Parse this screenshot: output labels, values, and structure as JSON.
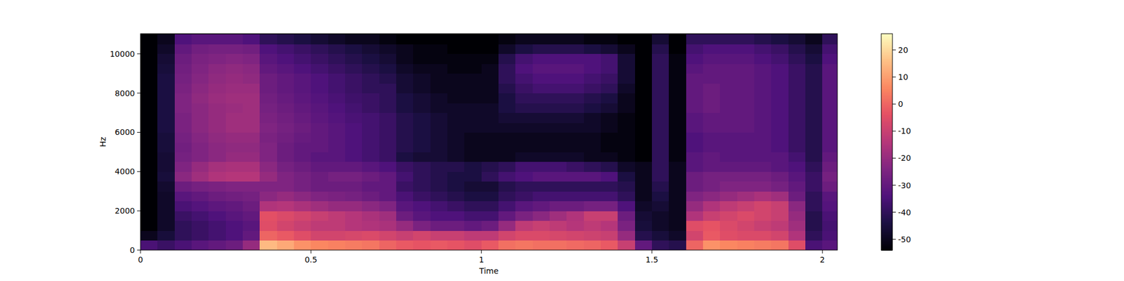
{
  "chart_data": {
    "type": "heatmap",
    "x_label": "Time",
    "y_label": "Hz",
    "xlim": [
      0,
      2.044
    ],
    "ylim": [
      0,
      11025
    ],
    "xticks": [
      0,
      0.5,
      1,
      1.5,
      2
    ],
    "yticks": [
      0,
      2000,
      4000,
      6000,
      8000,
      10000
    ],
    "colorbar_lim": [
      -54,
      26
    ],
    "colorbar_ticks": [
      -50,
      -40,
      -30,
      -20,
      -10,
      0,
      10,
      20
    ],
    "x": [
      0,
      0.05,
      0.1,
      0.15,
      0.2,
      0.25,
      0.3,
      0.35,
      0.4,
      0.45,
      0.5,
      0.55,
      0.6,
      0.65,
      0.7,
      0.75,
      0.8,
      0.85,
      0.9,
      0.95,
      1.0,
      1.05,
      1.1,
      1.15,
      1.2,
      1.25,
      1.3,
      1.35,
      1.4,
      1.45,
      1.5,
      1.55,
      1.6,
      1.65,
      1.7,
      1.75,
      1.8,
      1.85,
      1.9,
      1.95,
      2.0
    ],
    "y": [
      0,
      500,
      1000,
      1500,
      2000,
      2500,
      3000,
      3500,
      4000,
      4500,
      5000,
      5500,
      6000,
      6500,
      7000,
      7500,
      8000,
      8500,
      9000,
      9500,
      10000,
      10500,
      11000
    ],
    "values": [
      [
        -35,
        -38,
        -35,
        -32,
        -30,
        -28,
        -20,
        15,
        12,
        8,
        6,
        5,
        4,
        3,
        0,
        -2,
        -3,
        -2,
        -3,
        -5,
        -2,
        2,
        3,
        2,
        2,
        1,
        0,
        -2,
        -10,
        -30,
        -40,
        -42,
        0,
        8,
        6,
        5,
        4,
        3,
        -5,
        -35,
        -32
      ],
      [
        -50,
        -45,
        -40,
        -38,
        -36,
        -34,
        -30,
        0,
        -2,
        -5,
        -8,
        -8,
        -7,
        -6,
        -8,
        -10,
        -8,
        -10,
        -10,
        -12,
        -12,
        -8,
        -6,
        -6,
        -7,
        -8,
        -9,
        -10,
        -20,
        -42,
        -45,
        -48,
        -8,
        -2,
        -5,
        -6,
        -6,
        -8,
        -15,
        -40,
        -35
      ],
      [
        -54,
        -48,
        -40,
        -38,
        -36,
        -34,
        -32,
        -5,
        -8,
        -10,
        -12,
        -12,
        -14,
        -15,
        -16,
        -20,
        -25,
        -28,
        -28,
        -30,
        -28,
        -20,
        -12,
        -10,
        -12,
        -14,
        -12,
        -14,
        -25,
        -45,
        -48,
        -50,
        -5,
        -3,
        -6,
        -8,
        -10,
        -12,
        -18,
        -42,
        -36
      ],
      [
        -54,
        -48,
        -38,
        -36,
        -34,
        -32,
        -30,
        -4,
        -6,
        -8,
        -10,
        -12,
        -14,
        -16,
        -18,
        -28,
        -32,
        -34,
        -34,
        -36,
        -36,
        -30,
        -25,
        -22,
        -18,
        -15,
        -10,
        -10,
        -28,
        -46,
        -48,
        -50,
        -15,
        -10,
        -8,
        -6,
        -8,
        -10,
        -20,
        -42,
        -35
      ],
      [
        -54,
        -48,
        -35,
        -33,
        -31,
        -30,
        -28,
        -15,
        -14,
        -16,
        -18,
        -20,
        -20,
        -22,
        -24,
        -32,
        -34,
        -36,
        -38,
        -40,
        -40,
        -36,
        -32,
        -30,
        -28,
        -28,
        -26,
        -26,
        -34,
        -48,
        -46,
        -50,
        -20,
        -15,
        -12,
        -10,
        -8,
        -10,
        -22,
        -40,
        -33
      ],
      [
        -54,
        -48,
        -32,
        -30,
        -28,
        -27,
        -26,
        -22,
        -20,
        -22,
        -24,
        -25,
        -26,
        -28,
        -30,
        -35,
        -38,
        -40,
        -42,
        -44,
        -44,
        -40,
        -38,
        -36,
        -36,
        -36,
        -36,
        -36,
        -40,
        -50,
        -44,
        -50,
        -24,
        -22,
        -20,
        -18,
        -16,
        -18,
        -28,
        -40,
        -32
      ],
      [
        -54,
        -47,
        -28,
        -26,
        -25,
        -24,
        -24,
        -24,
        -24,
        -26,
        -28,
        -28,
        -28,
        -30,
        -30,
        -38,
        -40,
        -42,
        -44,
        -46,
        -46,
        -42,
        -40,
        -40,
        -40,
        -40,
        -40,
        -40,
        -42,
        -50,
        -42,
        -50,
        -28,
        -26,
        -24,
        -24,
        -24,
        -26,
        -30,
        -38,
        -28
      ],
      [
        -54,
        -45,
        -22,
        -18,
        -15,
        -14,
        -14,
        -20,
        -24,
        -26,
        -28,
        -26,
        -26,
        -28,
        -30,
        -36,
        -40,
        -42,
        -44,
        -44,
        -40,
        -36,
        -34,
        -32,
        -32,
        -32,
        -32,
        -34,
        -44,
        -50,
        -40,
        -50,
        -28,
        -26,
        -26,
        -26,
        -26,
        -28,
        -32,
        -38,
        -26
      ],
      [
        -54,
        -46,
        -24,
        -20,
        -17,
        -16,
        -16,
        -22,
        -26,
        -28,
        -30,
        -30,
        -30,
        -32,
        -34,
        -38,
        -40,
        -42,
        -42,
        -44,
        -42,
        -40,
        -36,
        -36,
        -36,
        -38,
        -40,
        -42,
        -48,
        -50,
        -40,
        -50,
        -32,
        -30,
        -30,
        -30,
        -30,
        -32,
        -34,
        -40,
        -28
      ],
      [
        -54,
        -46,
        -26,
        -24,
        -22,
        -20,
        -20,
        -24,
        -28,
        -30,
        -32,
        -32,
        -34,
        -36,
        -38,
        -44,
        -46,
        -46,
        -48,
        -50,
        -50,
        -50,
        -48,
        -48,
        -48,
        -48,
        -50,
        -50,
        -52,
        -54,
        -40,
        -52,
        -32,
        -30,
        -32,
        -32,
        -32,
        -32,
        -36,
        -42,
        -30
      ],
      [
        -54,
        -45,
        -27,
        -24,
        -22,
        -21,
        -21,
        -24,
        -28,
        -30,
        -30,
        -32,
        -34,
        -36,
        -38,
        -42,
        -44,
        -46,
        -48,
        -50,
        -50,
        -50,
        -50,
        -50,
        -50,
        -50,
        -50,
        -52,
        -52,
        -54,
        -40,
        -52,
        -34,
        -32,
        -32,
        -32,
        -32,
        -34,
        -38,
        -42,
        -32
      ],
      [
        -54,
        -45,
        -26,
        -23,
        -21,
        -20,
        -20,
        -25,
        -27,
        -29,
        -30,
        -32,
        -34,
        -36,
        -38,
        -42,
        -44,
        -46,
        -48,
        -50,
        -50,
        -50,
        -50,
        -50,
        -50,
        -50,
        -50,
        -52,
        -52,
        -54,
        -40,
        -52,
        -34,
        -32,
        -32,
        -32,
        -32,
        -34,
        -38,
        -42,
        -32
      ],
      [
        -54,
        -44,
        -25,
        -22,
        -20,
        -18,
        -18,
        -24,
        -26,
        -28,
        -30,
        -32,
        -34,
        -36,
        -38,
        -42,
        -44,
        -46,
        -48,
        -48,
        -48,
        -48,
        -48,
        -48,
        -48,
        -48,
        -48,
        -50,
        -52,
        -54,
        -40,
        -52,
        -32,
        -30,
        -30,
        -30,
        -32,
        -34,
        -38,
        -42,
        -32
      ],
      [
        -54,
        -44,
        -25,
        -22,
        -20,
        -18,
        -18,
        -25,
        -27,
        -29,
        -31,
        -33,
        -35,
        -36,
        -38,
        -42,
        -44,
        -46,
        -48,
        -48,
        -48,
        -46,
        -46,
        -46,
        -46,
        -46,
        -48,
        -50,
        -52,
        -54,
        -40,
        -52,
        -32,
        -30,
        -30,
        -30,
        -32,
        -34,
        -38,
        -42,
        -32
      ],
      [
        -54,
        -44,
        -24,
        -22,
        -20,
        -19,
        -18,
        -26,
        -28,
        -30,
        -32,
        -34,
        -36,
        -38,
        -40,
        -44,
        -46,
        -48,
        -48,
        -48,
        -48,
        -44,
        -42,
        -42,
        -42,
        -42,
        -44,
        -46,
        -50,
        -54,
        -40,
        -52,
        -30,
        -28,
        -30,
        -30,
        -32,
        -34,
        -38,
        -42,
        -32
      ],
      [
        -54,
        -44,
        -24,
        -21,
        -19,
        -18,
        -18,
        -27,
        -29,
        -31,
        -33,
        -35,
        -37,
        -38,
        -40,
        -44,
        -46,
        -48,
        -50,
        -50,
        -50,
        -44,
        -40,
        -40,
        -40,
        -40,
        -42,
        -44,
        -50,
        -54,
        -40,
        -52,
        -30,
        -28,
        -30,
        -30,
        -32,
        -34,
        -38,
        -42,
        -32
      ],
      [
        -54,
        -44,
        -25,
        -22,
        -20,
        -19,
        -19,
        -28,
        -30,
        -32,
        -34,
        -36,
        -38,
        -40,
        -40,
        -46,
        -48,
        -50,
        -50,
        -50,
        -50,
        -42,
        -38,
        -36,
        -36,
        -36,
        -38,
        -40,
        -48,
        -54,
        -40,
        -52,
        -30,
        -28,
        -30,
        -30,
        -32,
        -34,
        -38,
        -42,
        -32
      ],
      [
        -54,
        -44,
        -26,
        -23,
        -21,
        -20,
        -21,
        -28,
        -30,
        -32,
        -34,
        -36,
        -38,
        -40,
        -42,
        -46,
        -48,
        -50,
        -50,
        -50,
        -50,
        -40,
        -36,
        -34,
        -34,
        -34,
        -36,
        -38,
        -46,
        -54,
        -40,
        -52,
        -30,
        -30,
        -30,
        -30,
        -32,
        -34,
        -38,
        -42,
        -32
      ],
      [
        -54,
        -45,
        -27,
        -24,
        -22,
        -21,
        -22,
        -30,
        -32,
        -34,
        -36,
        -38,
        -40,
        -42,
        -44,
        -48,
        -50,
        -50,
        -52,
        -52,
        -50,
        -40,
        -34,
        -32,
        -32,
        -32,
        -34,
        -36,
        -46,
        -54,
        -40,
        -52,
        -32,
        -30,
        -30,
        -30,
        -32,
        -34,
        -38,
        -42,
        -32
      ],
      [
        -54,
        -46,
        -28,
        -25,
        -24,
        -23,
        -24,
        -32,
        -34,
        -36,
        -38,
        -40,
        -42,
        -44,
        -46,
        -50,
        -52,
        -52,
        -52,
        -52,
        -52,
        -42,
        -36,
        -34,
        -34,
        -34,
        -34,
        -36,
        -46,
        -54,
        -40,
        -52,
        -34,
        -32,
        -32,
        -32,
        -34,
        -36,
        -40,
        -44,
        -34
      ],
      [
        -54,
        -48,
        -30,
        -27,
        -26,
        -26,
        -27,
        -34,
        -36,
        -38,
        -40,
        -42,
        -44,
        -46,
        -48,
        -50,
        -52,
        -52,
        -54,
        -54,
        -54,
        -48,
        -44,
        -42,
        -42,
        -42,
        -44,
        -46,
        -50,
        -54,
        -42,
        -54,
        -36,
        -34,
        -34,
        -34,
        -36,
        -38,
        -42,
        -46,
        -36
      ],
      [
        -54,
        -50,
        -34,
        -32,
        -32,
        -32,
        -34,
        -40,
        -42,
        -44,
        -46,
        -48,
        -50,
        -50,
        -52,
        -54,
        -54,
        -54,
        -54,
        -54,
        -54,
        -52,
        -50,
        -50,
        -50,
        -50,
        -52,
        -52,
        -54,
        -54,
        -46,
        -54,
        -40,
        -40,
        -40,
        -40,
        -42,
        -44,
        -46,
        -50,
        -40
      ],
      [
        -54,
        -54,
        -54,
        -54,
        -54,
        -54,
        -54,
        -54,
        -54,
        -54,
        -54,
        -54,
        -54,
        -54,
        -54,
        -54,
        -54,
        -54,
        -54,
        -54,
        -54,
        -54,
        -54,
        -54,
        -54,
        -54,
        -54,
        -54,
        -54,
        -54,
        -54,
        -54,
        -54,
        -54,
        -54,
        -54,
        -54,
        -54,
        -54,
        -54,
        -54
      ]
    ]
  }
}
